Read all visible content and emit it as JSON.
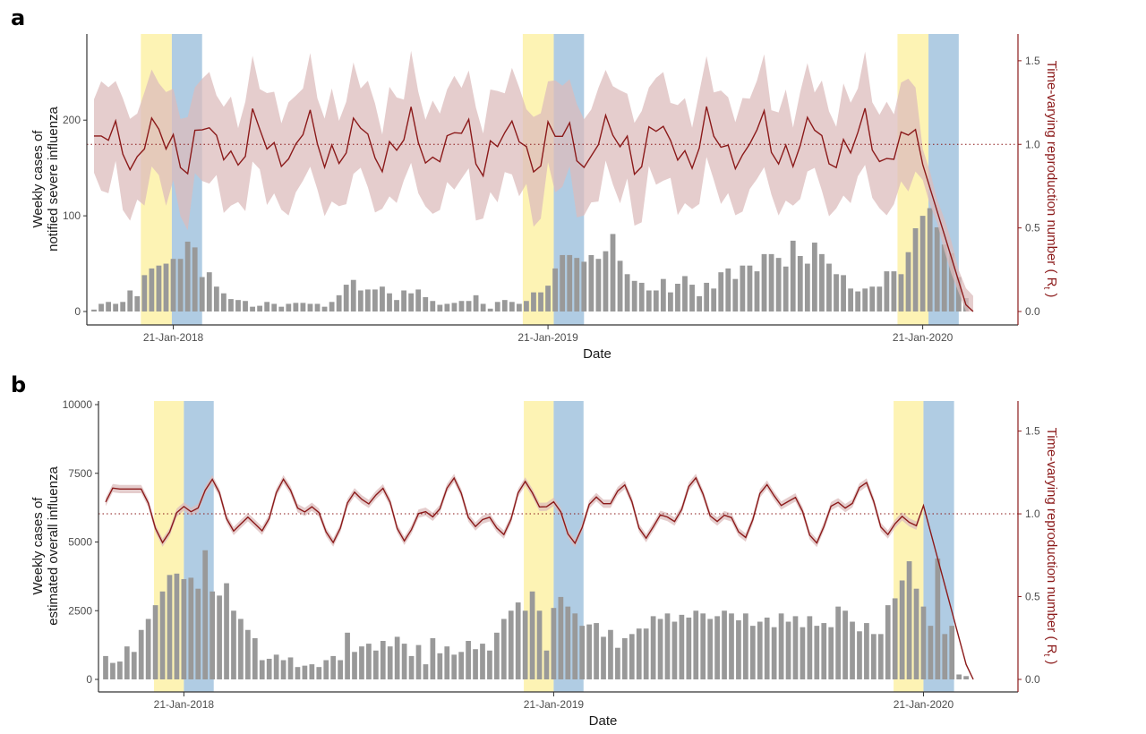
{
  "chart_data": [
    {
      "panel": "a",
      "type": "bar",
      "xlabel": "Date",
      "ylabel_line1": "Weekly cases of",
      "ylabel_line2": "notified severe influenza",
      "y2label": "Time-varying reproduction number ( R",
      "y2label_sub": "t",
      "ylim": [
        0,
        290
      ],
      "y2lim": [
        0,
        1.66
      ],
      "yticks": [
        0,
        100,
        200
      ],
      "y2ticks": [
        0.0,
        0.5,
        1.0,
        1.5
      ],
      "y2tick_labels": [
        "0.0",
        "0.5",
        "1.0",
        "1.5"
      ],
      "xticks": [
        {
          "label": "21-Jan-2018",
          "week": 11
        },
        {
          "label": "21-Jan-2019",
          "week": 63
        },
        {
          "label": "21-Jan-2020",
          "week": 115
        }
      ],
      "reference_line": 1.0,
      "shaded_periods": [
        {
          "color": "#fdf3b4",
          "from": 6.5,
          "to": 10.8
        },
        {
          "color": "#b0cce3",
          "from": 10.8,
          "to": 15
        },
        {
          "color": "#fdf3b4",
          "from": 59.5,
          "to": 63.8
        },
        {
          "color": "#b0cce3",
          "from": 63.8,
          "to": 68
        },
        {
          "color": "#fdf3b4",
          "from": 111.5,
          "to": 115.8
        },
        {
          "color": "#b0cce3",
          "from": 115.8,
          "to": 120
        }
      ],
      "bar_color": "#999999",
      "line_color": "#8b1a1a",
      "band_color": "#dcbcbc",
      "values": [
        2,
        8,
        10,
        8,
        10,
        22,
        16,
        38,
        45,
        48,
        50,
        55,
        55,
        73,
        67,
        36,
        41,
        26,
        19,
        13,
        12,
        11,
        5,
        6,
        10,
        8,
        5,
        8,
        9,
        9,
        8,
        8,
        5,
        10,
        17,
        28,
        33,
        22,
        23,
        23,
        26,
        19,
        12,
        22,
        19,
        23,
        15,
        11,
        7,
        8,
        9,
        11,
        11,
        17,
        8,
        3,
        10,
        12,
        10,
        8,
        11,
        20,
        20,
        27,
        45,
        59,
        59,
        56,
        52,
        59,
        55,
        63,
        81,
        53,
        39,
        32,
        30,
        22,
        22,
        34,
        20,
        29,
        37,
        28,
        16,
        30,
        24,
        41,
        45,
        34,
        48,
        48,
        42,
        60,
        60,
        56,
        47,
        74,
        58,
        50,
        72,
        60,
        50,
        39,
        38,
        24,
        21,
        24,
        26,
        26,
        42,
        42,
        39,
        62,
        87,
        100,
        108,
        88,
        70,
        61,
        36,
        14,
        0
      ]
    },
    {
      "panel": "b",
      "type": "bar",
      "xlabel": "Date",
      "ylabel_line1": "Weekly cases of",
      "ylabel_line2": "estimated overall influenza",
      "y2label": "Time-varying reproduction number ( R",
      "y2label_sub": "t",
      "ylim": [
        0,
        10000
      ],
      "y2lim": [
        0,
        1.66
      ],
      "yticks": [
        0,
        2500,
        5000,
        7500,
        10000
      ],
      "y2ticks": [
        0.0,
        0.5,
        1.0,
        1.5
      ],
      "y2tick_labels": [
        "0.0",
        "0.5",
        "1.0",
        "1.5"
      ],
      "xticks": [
        {
          "label": "21-Jan-2018",
          "week": 11
        },
        {
          "label": "21-Jan-2019",
          "week": 63
        },
        {
          "label": "21-Jan-2020",
          "week": 115
        }
      ],
      "reference_line": 1.0,
      "shaded_periods": [
        {
          "color": "#fdf3b4",
          "from": 6.8,
          "to": 11
        },
        {
          "color": "#b0cce3",
          "from": 11,
          "to": 15.2
        },
        {
          "color": "#fdf3b4",
          "from": 58.8,
          "to": 63
        },
        {
          "color": "#b0cce3",
          "from": 63,
          "to": 67.2
        },
        {
          "color": "#fdf3b4",
          "from": 110.8,
          "to": 115
        },
        {
          "color": "#b0cce3",
          "from": 115,
          "to": 119.3
        }
      ],
      "bar_color": "#999999",
      "line_color": "#8b1a1a",
      "band_color": "#dcbcbc",
      "values": [
        850,
        600,
        650,
        1200,
        1000,
        1800,
        2200,
        2700,
        3200,
        3800,
        3850,
        3650,
        3700,
        3300,
        4700,
        3200,
        3050,
        3500,
        2500,
        2200,
        1800,
        1500,
        700,
        750,
        900,
        700,
        800,
        450,
        500,
        550,
        450,
        700,
        850,
        700,
        1700,
        1000,
        1200,
        1300,
        1050,
        1400,
        1200,
        1550,
        1300,
        850,
        1250,
        550,
        1500,
        950,
        1200,
        900,
        1000,
        1400,
        1100,
        1300,
        1050,
        1700,
        2200,
        2500,
        2800,
        2500,
        3200,
        2500,
        1050,
        2600,
        3000,
        2650,
        2400,
        1950,
        2000,
        2050,
        1550,
        1800,
        1150,
        1500,
        1650,
        1850,
        1850,
        2300,
        2200,
        2400,
        2100,
        2350,
        2250,
        2500,
        2400,
        2200,
        2300,
        2500,
        2400,
        2150,
        2400,
        1950,
        2100,
        2250,
        1900,
        2400,
        2100,
        2300,
        1900,
        2300,
        1950,
        2050,
        1900,
        2650,
        2500,
        2100,
        1750,
        2050,
        1650,
        1650,
        2700,
        2950,
        3600,
        4300,
        3300,
        2650,
        1950,
        4400,
        1650,
        1950,
        180,
        120,
        0
      ]
    }
  ]
}
